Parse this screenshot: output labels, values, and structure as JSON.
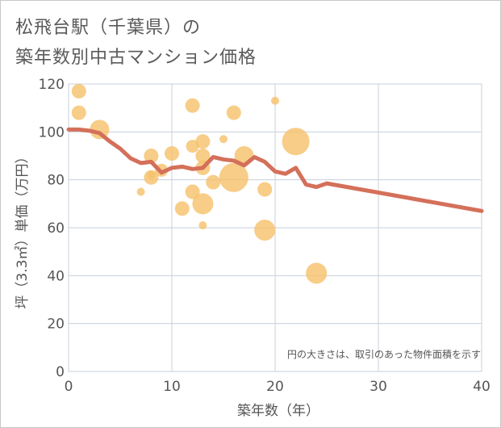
{
  "title_line1": "松飛台駅（千葉県）の",
  "title_line2": "築年数別中古マンション価格",
  "chart_data": {
    "type": "scatter",
    "xlabel": "築年数（年）",
    "ylabel": "坪（3.3㎡）単価（万円）",
    "xlim": [
      0,
      40
    ],
    "ylim": [
      0,
      120
    ],
    "x_ticks": [
      0,
      10,
      20,
      30,
      40
    ],
    "y_ticks": [
      0,
      20,
      40,
      60,
      80,
      100,
      120
    ],
    "x_tick_labels": [
      "0",
      "10",
      "20",
      "30",
      "40"
    ],
    "y_tick_labels": [
      "0",
      "20",
      "40",
      "60",
      "80",
      "100",
      "120"
    ],
    "note": "円の大きさは、取引のあった物件面積を示す",
    "colors": {
      "bubble": "#f5c169",
      "line": "#d4705a",
      "grid": "#c8d0dc"
    },
    "scatter": [
      {
        "x": 1,
        "y": 117,
        "size": 9
      },
      {
        "x": 1,
        "y": 108,
        "size": 9
      },
      {
        "x": 3,
        "y": 101,
        "size": 12
      },
      {
        "x": 7,
        "y": 75,
        "size": 5
      },
      {
        "x": 8,
        "y": 90,
        "size": 9
      },
      {
        "x": 8,
        "y": 81,
        "size": 9
      },
      {
        "x": 8,
        "y": 82,
        "size": 5
      },
      {
        "x": 9,
        "y": 84,
        "size": 8
      },
      {
        "x": 10,
        "y": 91,
        "size": 9
      },
      {
        "x": 11,
        "y": 68,
        "size": 9
      },
      {
        "x": 12,
        "y": 111,
        "size": 9
      },
      {
        "x": 12,
        "y": 94,
        "size": 8
      },
      {
        "x": 12,
        "y": 75,
        "size": 9
      },
      {
        "x": 13,
        "y": 96,
        "size": 9
      },
      {
        "x": 13,
        "y": 90,
        "size": 9
      },
      {
        "x": 13,
        "y": 85,
        "size": 9
      },
      {
        "x": 13,
        "y": 70,
        "size": 13
      },
      {
        "x": 13,
        "y": 61,
        "size": 5
      },
      {
        "x": 14,
        "y": 79,
        "size": 9
      },
      {
        "x": 15,
        "y": 97,
        "size": 5
      },
      {
        "x": 16,
        "y": 108,
        "size": 9
      },
      {
        "x": 16,
        "y": 81,
        "size": 18
      },
      {
        "x": 17,
        "y": 90,
        "size": 12
      },
      {
        "x": 19,
        "y": 76,
        "size": 9
      },
      {
        "x": 19,
        "y": 59,
        "size": 13
      },
      {
        "x": 20,
        "y": 113,
        "size": 5
      },
      {
        "x": 22,
        "y": 96,
        "size": 17
      },
      {
        "x": 24,
        "y": 41,
        "size": 13
      }
    ],
    "trend": {
      "x": [
        0,
        1,
        2,
        3,
        4,
        5,
        6,
        7,
        8,
        9,
        10,
        11,
        12,
        13,
        14,
        15,
        16,
        17,
        18,
        19,
        20,
        21,
        22,
        23,
        24,
        25,
        40
      ],
      "y": [
        101,
        101,
        100.5,
        99.5,
        96,
        93,
        89,
        87,
        87.5,
        83,
        85,
        85.5,
        84.5,
        85,
        89.5,
        88.5,
        88,
        86,
        89.5,
        87.5,
        83.5,
        82.5,
        85,
        78,
        77,
        78.5,
        67
      ]
    }
  }
}
